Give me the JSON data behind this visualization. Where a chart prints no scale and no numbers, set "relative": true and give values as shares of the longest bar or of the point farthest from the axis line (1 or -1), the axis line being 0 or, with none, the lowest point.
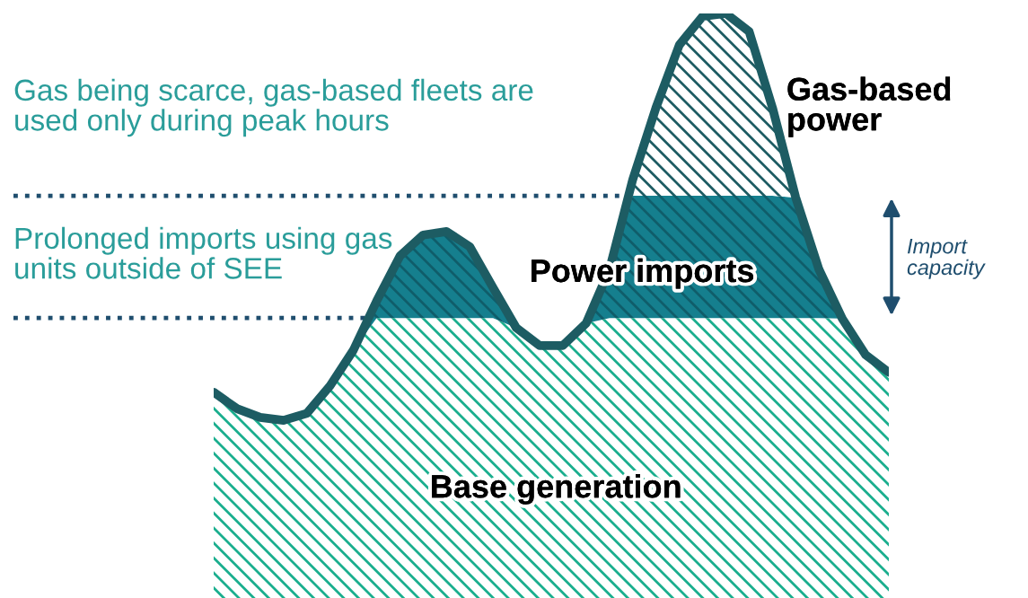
{
  "chart_data": {
    "type": "area",
    "relative": true,
    "stacked": true,
    "legend": false,
    "grid": false,
    "categories": [
      null,
      null,
      null,
      null,
      null,
      null,
      null,
      null,
      null,
      null,
      null,
      null,
      null,
      null,
      null,
      null,
      null,
      null,
      null,
      null,
      null,
      null,
      null,
      null,
      null,
      null,
      null,
      null,
      null,
      null
    ],
    "series": [
      {
        "name": "Base generation",
        "color": "#1aae8e",
        "values": [
          0.352,
          0.324,
          0.309,
          0.304,
          0.316,
          0.363,
          0.424,
          0.479,
          0.479,
          0.479,
          0.479,
          0.479,
          0.479,
          0.462,
          0.432,
          0.432,
          0.47,
          0.479,
          0.479,
          0.479,
          0.479,
          0.479,
          0.479,
          0.479,
          0.479,
          0.479,
          0.479,
          0.478,
          0.416,
          0.386
        ]
      },
      {
        "name": "Power imports",
        "color": "#157f8e",
        "values": [
          0,
          0,
          0,
          0,
          0,
          0,
          0,
          0.029,
          0.106,
          0.142,
          0.148,
          0.122,
          0.052,
          0,
          0,
          0,
          0,
          0.083,
          0.209,
          0.209,
          0.209,
          0.209,
          0.209,
          0.209,
          0.209,
          0.206,
          0.083,
          0,
          0,
          0
        ]
      },
      {
        "name": "Gas-based power",
        "color": "#1d5c63",
        "values": [
          0,
          0,
          0,
          0,
          0,
          0,
          0,
          0,
          0,
          0,
          0,
          0,
          0,
          0,
          0,
          0,
          0,
          0,
          0.028,
          0.151,
          0.258,
          0.307,
          0.312,
          0.281,
          0.151,
          0,
          0,
          0,
          0,
          0
        ]
      }
    ],
    "ref_lines": [
      {
        "axis": "y",
        "value": 0.479,
        "color": "#1f4e6e",
        "line_style": "dotted"
      },
      {
        "axis": "y",
        "value": 0.688,
        "color": "#1f4e6e",
        "line_style": "dotted"
      }
    ],
    "annotations": [
      "Gas being scarce, gas-based fleets are\nused only during peak hours",
      "Prolonged imports using gas\nunits outside of SEE",
      "Import\ncapacity"
    ]
  }
}
